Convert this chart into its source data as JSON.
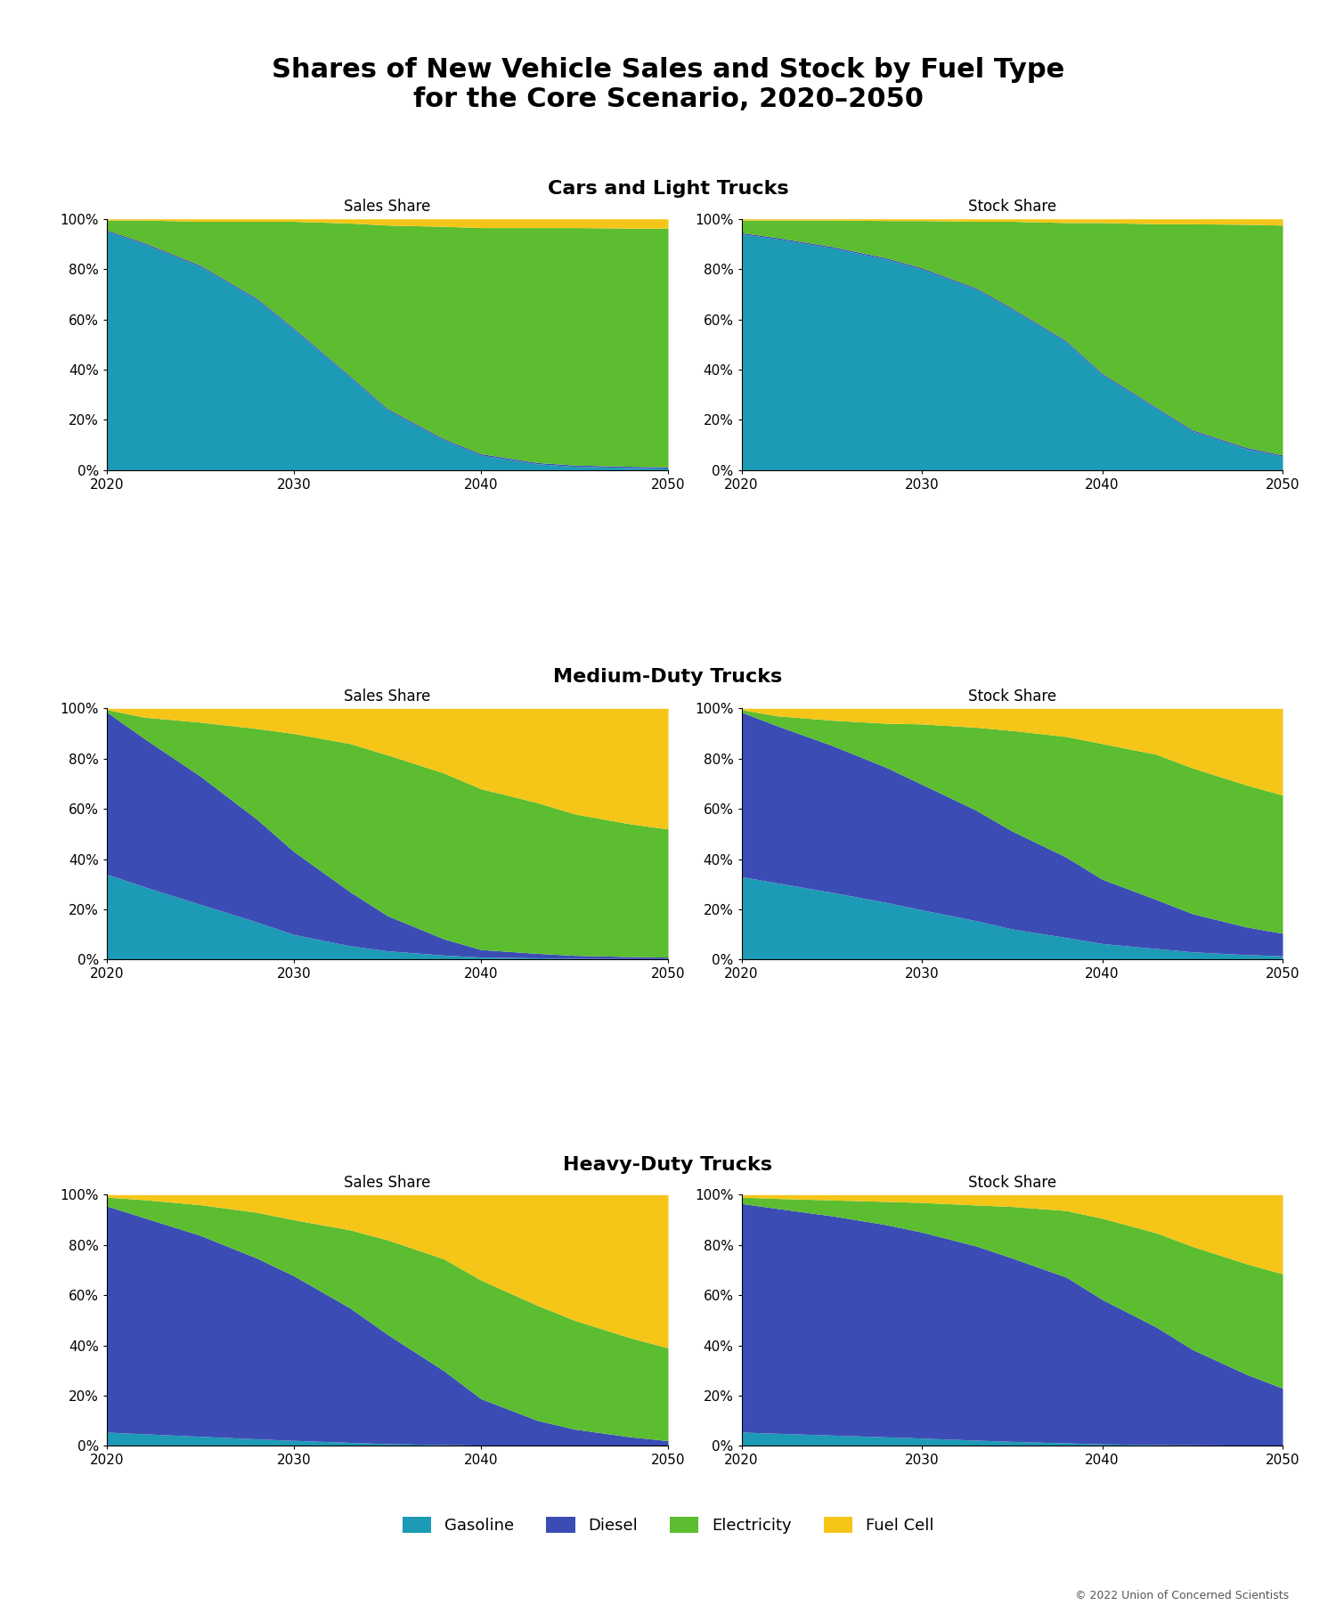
{
  "title": "Shares of New Vehicle Sales and Stock by Fuel Type\nfor the Core Scenario, 2020–2050",
  "section_titles": [
    "Cars and Light Trucks",
    "Medium-Duty Trucks",
    "Heavy-Duty Trucks"
  ],
  "subplot_titles": [
    "Sales Share",
    "Stock Share"
  ],
  "colors": {
    "gasoline": "#1D9AB5",
    "diesel": "#3B4DB5",
    "electricity": "#5BBD2F",
    "fuel_cell": "#F5C518"
  },
  "legend_labels": [
    "Gasoline",
    "Diesel",
    "Electricity",
    "Fuel Cell"
  ],
  "years": [
    2020,
    2022,
    2025,
    2028,
    2030,
    2033,
    2035,
    2038,
    2040,
    2043,
    2045,
    2048,
    2050
  ],
  "copyright": "© 2022 Union of Concerned Scientists",
  "cars_sales": {
    "gasoline": [
      0.95,
      0.9,
      0.81,
      0.68,
      0.56,
      0.37,
      0.24,
      0.12,
      0.06,
      0.025,
      0.015,
      0.01,
      0.008
    ],
    "diesel": [
      0.005,
      0.005,
      0.005,
      0.005,
      0.005,
      0.005,
      0.005,
      0.005,
      0.005,
      0.005,
      0.005,
      0.005,
      0.005
    ],
    "electricity": [
      0.04,
      0.09,
      0.175,
      0.305,
      0.425,
      0.608,
      0.73,
      0.845,
      0.9,
      0.935,
      0.945,
      0.948,
      0.95
    ],
    "fuel_cell": [
      0.005,
      0.005,
      0.01,
      0.01,
      0.01,
      0.017,
      0.025,
      0.03,
      0.035,
      0.035,
      0.035,
      0.037,
      0.037
    ]
  },
  "cars_stock": {
    "gasoline": [
      0.94,
      0.92,
      0.885,
      0.84,
      0.8,
      0.72,
      0.64,
      0.51,
      0.38,
      0.245,
      0.155,
      0.085,
      0.055
    ],
    "diesel": [
      0.005,
      0.005,
      0.005,
      0.005,
      0.005,
      0.005,
      0.005,
      0.005,
      0.005,
      0.005,
      0.005,
      0.005,
      0.005
    ],
    "electricity": [
      0.05,
      0.07,
      0.105,
      0.148,
      0.188,
      0.265,
      0.345,
      0.47,
      0.6,
      0.73,
      0.82,
      0.888,
      0.915
    ],
    "fuel_cell": [
      0.005,
      0.005,
      0.005,
      0.007,
      0.007,
      0.01,
      0.01,
      0.015,
      0.015,
      0.02,
      0.02,
      0.022,
      0.025
    ]
  },
  "mdt_sales": {
    "gasoline": [
      0.34,
      0.29,
      0.22,
      0.15,
      0.1,
      0.055,
      0.035,
      0.018,
      0.01,
      0.007,
      0.005,
      0.004,
      0.004
    ],
    "diesel": [
      0.645,
      0.59,
      0.51,
      0.41,
      0.33,
      0.215,
      0.14,
      0.065,
      0.03,
      0.018,
      0.012,
      0.008,
      0.006
    ],
    "electricity": [
      0.01,
      0.085,
      0.215,
      0.36,
      0.47,
      0.59,
      0.64,
      0.66,
      0.64,
      0.6,
      0.563,
      0.528,
      0.51
    ],
    "fuel_cell": [
      0.005,
      0.035,
      0.055,
      0.08,
      0.1,
      0.14,
      0.185,
      0.257,
      0.32,
      0.375,
      0.42,
      0.46,
      0.48
    ]
  },
  "mdt_stock": {
    "gasoline": [
      0.33,
      0.305,
      0.268,
      0.228,
      0.198,
      0.155,
      0.122,
      0.088,
      0.064,
      0.044,
      0.031,
      0.02,
      0.015
    ],
    "diesel": [
      0.655,
      0.625,
      0.585,
      0.538,
      0.5,
      0.44,
      0.39,
      0.32,
      0.256,
      0.195,
      0.152,
      0.11,
      0.09
    ],
    "electricity": [
      0.01,
      0.04,
      0.1,
      0.175,
      0.24,
      0.33,
      0.4,
      0.48,
      0.54,
      0.578,
      0.58,
      0.565,
      0.55
    ],
    "fuel_cell": [
      0.005,
      0.03,
      0.047,
      0.059,
      0.062,
      0.075,
      0.088,
      0.112,
      0.14,
      0.183,
      0.237,
      0.305,
      0.345
    ]
  },
  "hdt_sales": {
    "gasoline": [
      0.055,
      0.048,
      0.038,
      0.028,
      0.022,
      0.014,
      0.009,
      0.005,
      0.003,
      0.002,
      0.002,
      0.001,
      0.001
    ],
    "diesel": [
      0.9,
      0.86,
      0.8,
      0.72,
      0.655,
      0.535,
      0.435,
      0.295,
      0.185,
      0.1,
      0.065,
      0.035,
      0.02
    ],
    "electricity": [
      0.035,
      0.072,
      0.122,
      0.182,
      0.223,
      0.311,
      0.376,
      0.445,
      0.472,
      0.458,
      0.433,
      0.394,
      0.369
    ],
    "fuel_cell": [
      0.01,
      0.02,
      0.04,
      0.07,
      0.1,
      0.14,
      0.18,
      0.255,
      0.34,
      0.44,
      0.5,
      0.57,
      0.61
    ]
  },
  "hdt_stock": {
    "gasoline": [
      0.055,
      0.05,
      0.043,
      0.036,
      0.031,
      0.023,
      0.018,
      0.012,
      0.008,
      0.005,
      0.004,
      0.003,
      0.002
    ],
    "diesel": [
      0.91,
      0.895,
      0.873,
      0.845,
      0.82,
      0.773,
      0.73,
      0.66,
      0.575,
      0.468,
      0.38,
      0.282,
      0.228
    ],
    "electricity": [
      0.025,
      0.04,
      0.063,
      0.092,
      0.118,
      0.163,
      0.205,
      0.265,
      0.323,
      0.375,
      0.41,
      0.44,
      0.455
    ],
    "fuel_cell": [
      0.01,
      0.015,
      0.021,
      0.027,
      0.031,
      0.041,
      0.047,
      0.063,
      0.094,
      0.152,
      0.206,
      0.275,
      0.315
    ]
  }
}
